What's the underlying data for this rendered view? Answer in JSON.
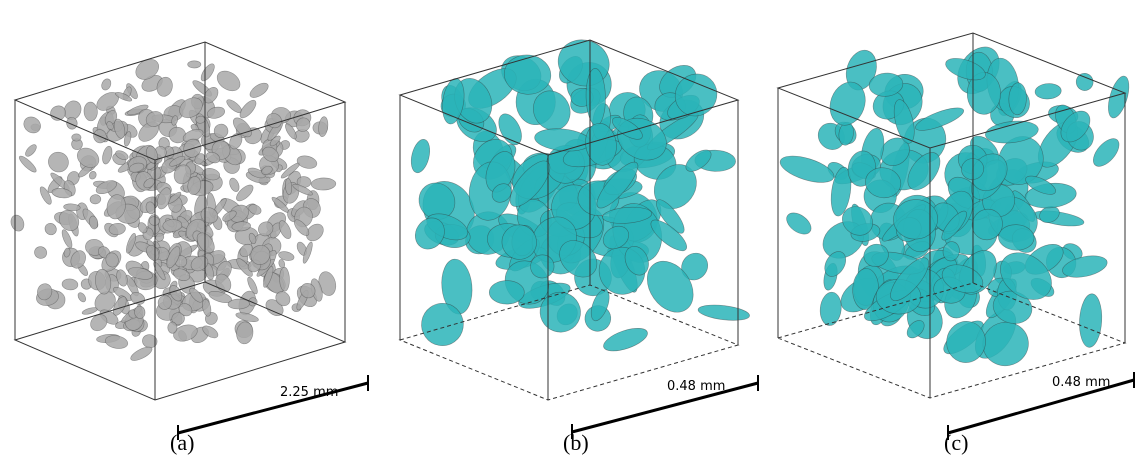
{
  "panels": [
    {
      "label": "(a)",
      "scale": "2.25 mm"
    },
    {
      "label": "(b)",
      "scale": "0.48 mm"
    },
    {
      "label": "(c)",
      "scale": "0.48 mm"
    }
  ]
}
